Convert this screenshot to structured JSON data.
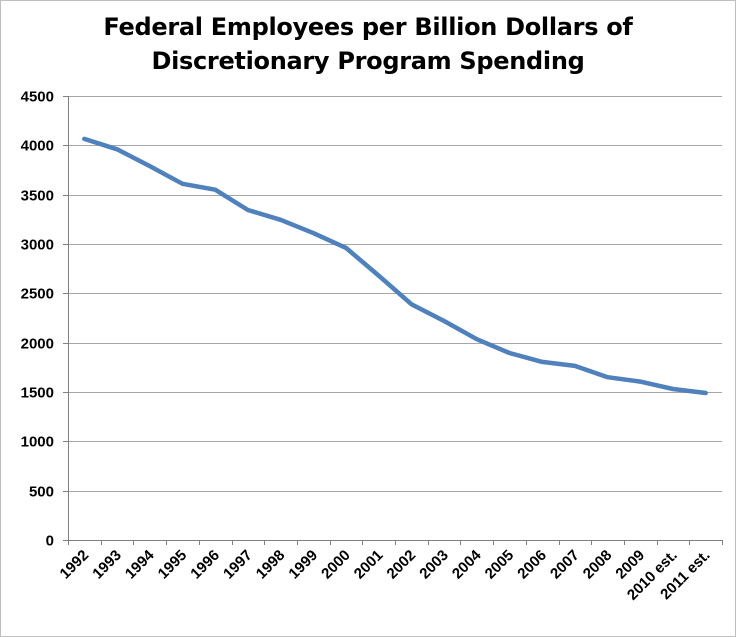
{
  "chart_data": {
    "type": "line",
    "title_line1": "Federal Employees per Billion Dollars of",
    "title_line2": "Discretionary  Program Spending",
    "xlabel": "",
    "ylabel": "",
    "categories": [
      "1992",
      "1993",
      "1994",
      "1995",
      "1996",
      "1997",
      "1998",
      "1999",
      "2000",
      "2001",
      "2002",
      "2003",
      "2004",
      "2005",
      "2006",
      "2007",
      "2008",
      "2009",
      "2010 est.",
      "2011 est."
    ],
    "series": [
      {
        "values": [
          4065,
          3960,
          3790,
          3610,
          3550,
          3345,
          3245,
          3110,
          2960,
          2680,
          2390,
          2220,
          2035,
          1895,
          1805,
          1765,
          1650,
          1605,
          1530,
          1490
        ]
      }
    ],
    "ylim": [
      0,
      4500
    ],
    "yticks": [
      0,
      500,
      1000,
      1500,
      2000,
      2500,
      3000,
      3500,
      4000,
      4500
    ],
    "grid": true,
    "line_color": "#4f81bd",
    "grid_color": "#a6a6a6"
  }
}
